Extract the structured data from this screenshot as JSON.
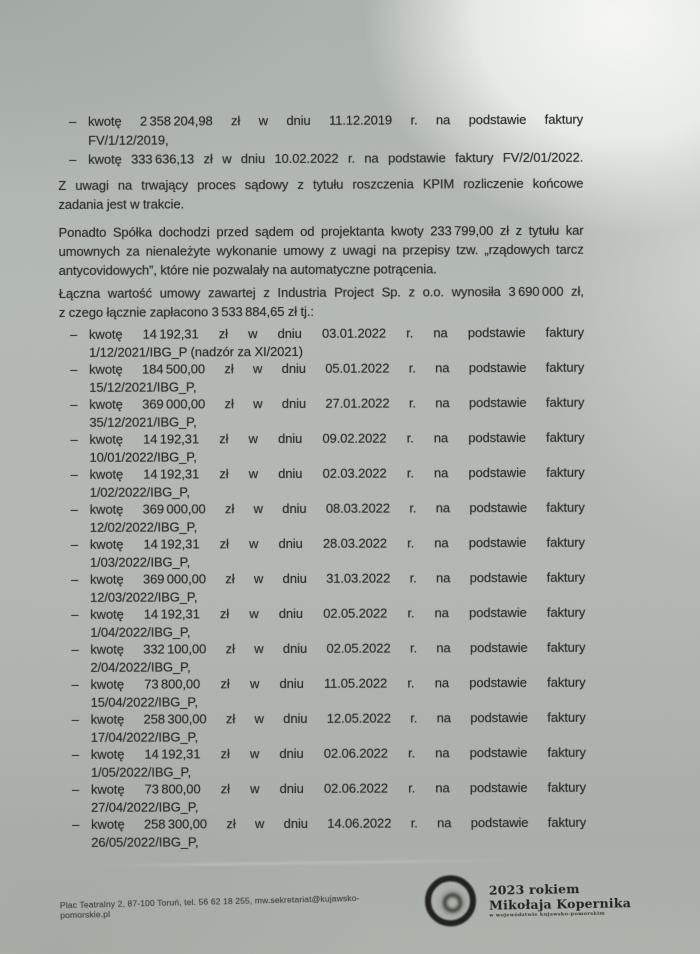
{
  "document": {
    "intro_bullets": [
      {
        "l1": "kwotę 2 358 204,98 zł w dniu 11.12.2019 r. na podstawie faktury",
        "l2": "FV/1/12/2019,"
      },
      {
        "l1": "kwotę 333 636,13 zł w dniu 10.02.2022 r. na podstawie faktury FV/2/01/2022.",
        "l2": ""
      }
    ],
    "p_kpim": {
      "l1": "Z uwagi na trwający proces sądowy z tytułu roszczenia KPIM rozliczenie końcowe",
      "l2": "zadania jest w trakcie."
    },
    "p_projektant": {
      "l1": "Ponadto Spółka dochodzi przed sądem od projektanta kwoty 233 799,00 zł z tytułu kar",
      "l2": "umownych za nienależyte wykonanie umowy z uwagi na przepisy tzw. „rządowych tarcz",
      "l3": "antycovidowych”, które nie pozwalały na automatyczne potrącenia."
    },
    "p_industria": {
      "l1": "Łączna wartość umowy zawartej z Industria Project Sp. z o.o. wynosiła 3 690 000 zł,",
      "l2": "z czego łącznie zapłacono 3 533 884,65 zł tj.:"
    },
    "payments": [
      {
        "l1": "kwotę 14 192,31 zł w dniu 03.01.2022 r. na podstawie faktury",
        "l2": "1/12/2021/IBG_P (nadzór za XI/2021)"
      },
      {
        "l1": "kwotę 184 500,00 zł w dniu 05.01.2022 r. na podstawie faktury",
        "l2": "15/12/2021/IBG_P,"
      },
      {
        "l1": "kwotę 369 000,00 zł w dniu 27.01.2022 r. na podstawie faktury",
        "l2": "35/12/2021/IBG_P,"
      },
      {
        "l1": "kwotę 14 192,31 zł w dniu 09.02.2022 r. na podstawie faktury",
        "l2": "10/01/2022/IBG_P,"
      },
      {
        "l1": "kwotę 14 192,31 zł w dniu 02.03.2022 r. na podstawie faktury",
        "l2": "1/02/2022/IBG_P,"
      },
      {
        "l1": "kwotę 369 000,00 zł w dniu 08.03.2022 r. na podstawie faktury",
        "l2": "12/02/2022/IBG_P,"
      },
      {
        "l1": "kwotę 14 192,31 zł w dniu 28.03.2022 r. na podstawie faktury",
        "l2": "1/03/2022/IBG_P,"
      },
      {
        "l1": "kwotę 369 000,00 zł w dniu 31.03.2022 r. na podstawie faktury",
        "l2": "12/03/2022/IBG_P,"
      },
      {
        "l1": "kwotę 14 192,31 zł w dniu 02.05.2022 r. na podstawie faktury",
        "l2": "1/04/2022/IBG_P,"
      },
      {
        "l1": "kwotę 332 100,00 zł w dniu 02.05.2022 r. na podstawie faktury",
        "l2": "2/04/2022/IBG_P,"
      },
      {
        "l1": "kwotę 73 800,00 zł w dniu 11.05.2022 r. na podstawie faktury",
        "l2": "15/04/2022/IBG_P,"
      },
      {
        "l1": "kwotę 258 300,00 zł w dniu 12.05.2022 r. na podstawie faktury",
        "l2": "17/04/2022/IBG_P,"
      },
      {
        "l1": "kwotę 14 192,31 zł w dniu 02.06.2022 r. na podstawie faktury",
        "l2": "1/05/2022/IBG_P,"
      },
      {
        "l1": "kwotę 73 800,00 zł w dniu 02.06.2022 r. na podstawie faktury",
        "l2": "27/04/2022/IBG_P,"
      },
      {
        "l1": "kwotę 258 300,00 zł w dniu 14.06.2022 r. na podstawie faktury",
        "l2": "26/05/2022/IBG_P,"
      }
    ]
  },
  "footer": {
    "address": "Plac Teatralny 2, 87-100 Toruń, tel. 56 62 18 255, mw.sekretariat@kujawsko-pomorskie.pl",
    "logo": {
      "year_line": "2023 rokiem",
      "name_line": "Mikołaja Kopernika",
      "subline": "w województwie kujawsko-pomorskim"
    }
  }
}
